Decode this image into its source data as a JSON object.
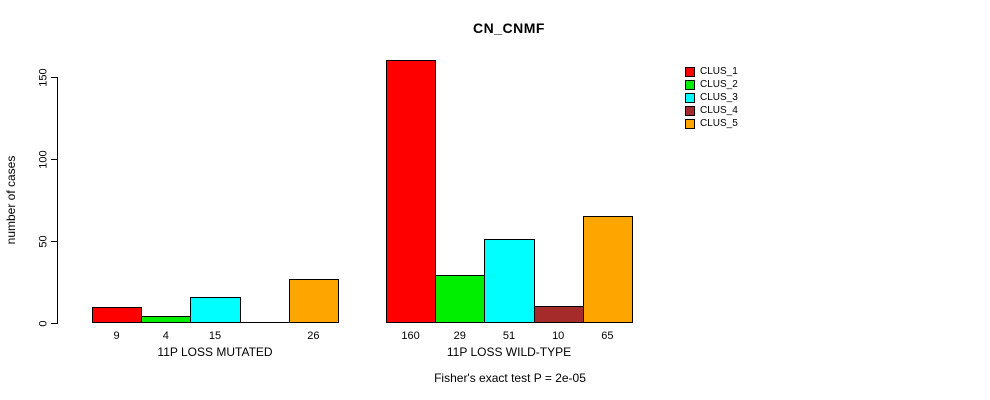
{
  "chart_data": {
    "type": "bar",
    "title": "CN_CNMF",
    "ylabel": "number of cases",
    "xlabel": "",
    "categories": [
      "11P LOSS MUTATED",
      "11P LOSS WILD-TYPE"
    ],
    "series": [
      {
        "name": "CLUS_1",
        "color": "#FF0000",
        "values": [
          9,
          160
        ]
      },
      {
        "name": "CLUS_2",
        "color": "#00EE00",
        "values": [
          4,
          29
        ]
      },
      {
        "name": "CLUS_3",
        "color": "#00FFFF",
        "values": [
          15,
          51
        ]
      },
      {
        "name": "CLUS_4",
        "color": "#A52A2A",
        "values": [
          0,
          10
        ]
      },
      {
        "name": "CLUS_5",
        "color": "#FFA500",
        "values": [
          26,
          65
        ]
      }
    ],
    "yticks": [
      0,
      50,
      100,
      150
    ],
    "ylim": [
      0,
      160
    ],
    "grid": false,
    "bar_value_labels": true,
    "zero_bars_unlabeled": true,
    "legend_position": "top-right",
    "annotation": "Fisher's exact test P = 2e-05"
  }
}
